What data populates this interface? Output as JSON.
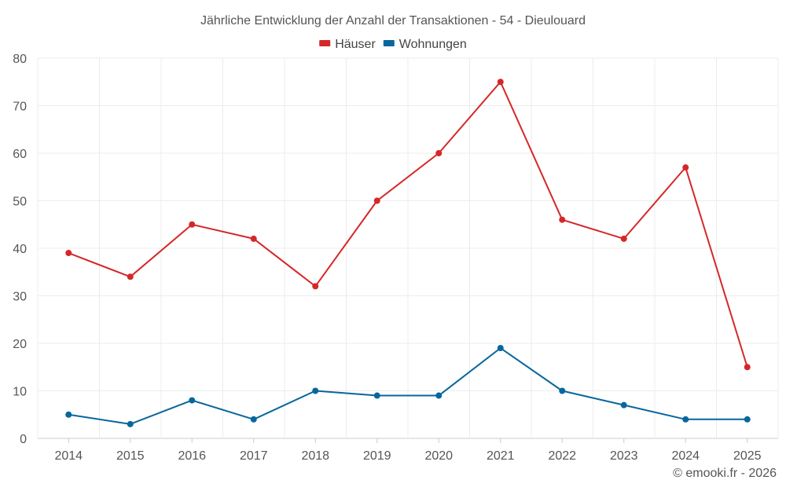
{
  "chart_data": {
    "type": "line",
    "title": "Jährliche Entwicklung der Anzahl der Transaktionen - 54 - Dieulouard",
    "categories": [
      "2014",
      "2015",
      "2016",
      "2017",
      "2018",
      "2019",
      "2020",
      "2021",
      "2022",
      "2023",
      "2024",
      "2025"
    ],
    "series": [
      {
        "name": "Häuser",
        "color": "#d62728",
        "values": [
          39,
          34,
          45,
          42,
          32,
          50,
          60,
          75,
          46,
          42,
          57,
          15
        ]
      },
      {
        "name": "Wohnungen",
        "color": "#08669e",
        "values": [
          5,
          3,
          8,
          4,
          10,
          9,
          9,
          19,
          10,
          7,
          4,
          4
        ]
      }
    ],
    "ylim": [
      0,
      80
    ],
    "yticks": [
      0,
      10,
      20,
      30,
      40,
      50,
      60,
      70,
      80
    ],
    "xlabel": "",
    "ylabel": "",
    "grid": true,
    "legend": "top-center"
  },
  "credit": "© emooki.fr - 2026"
}
